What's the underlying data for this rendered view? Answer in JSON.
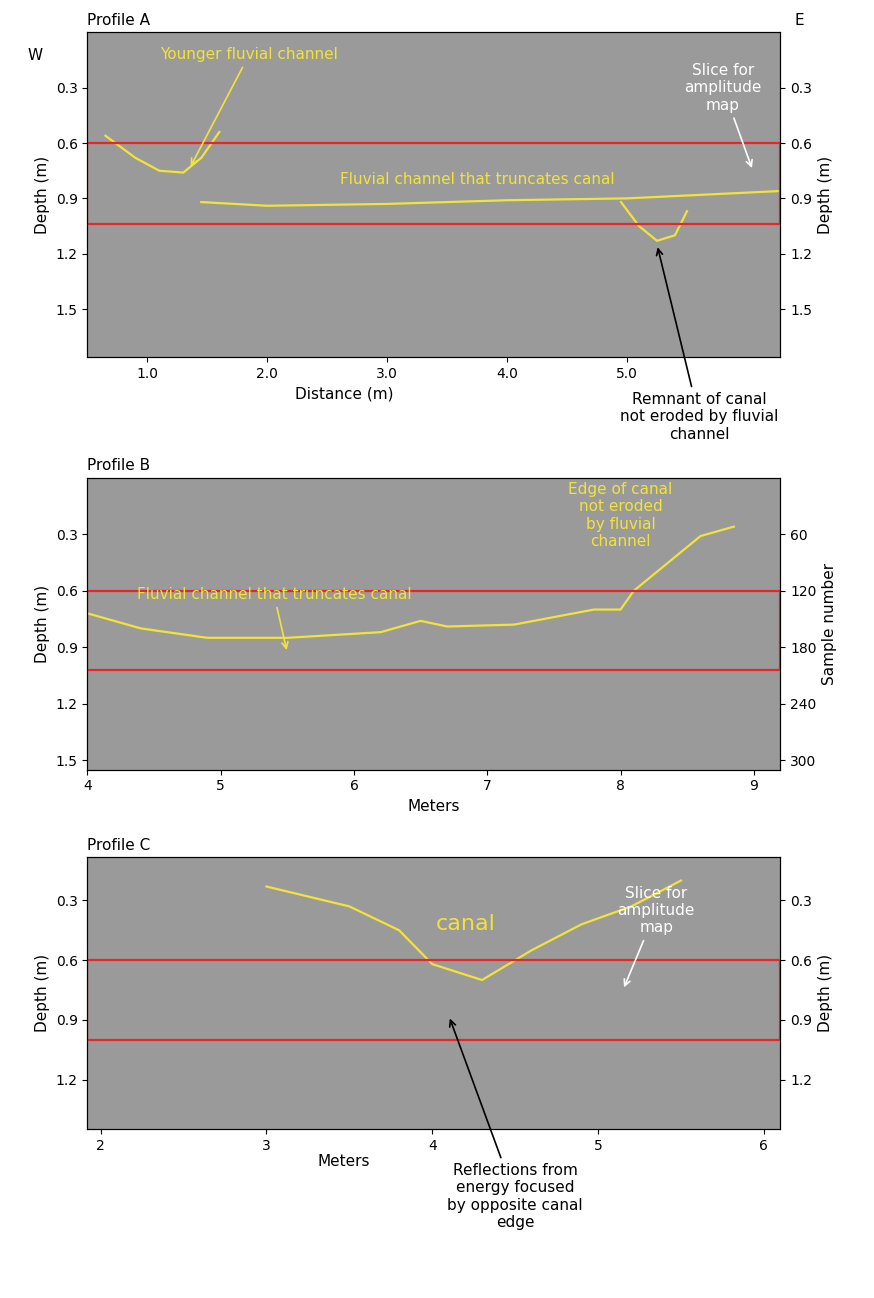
{
  "chart_data": [
    {
      "type": "line",
      "title": "Profile A",
      "xlabel": "Distance (m)",
      "ylabel": "Depth (m)",
      "y2label": "Depth (m)",
      "xlim": [
        0.5,
        6.28
      ],
      "ylim": [
        1.76,
        0
      ],
      "xticks": [
        {
          "value": 1,
          "label": "1.0"
        },
        {
          "value": 2,
          "label": "2.0"
        },
        {
          "value": 3,
          "label": "3.0"
        },
        {
          "value": 4,
          "label": "4.0"
        },
        {
          "value": 5,
          "label": "5.0"
        }
      ],
      "yticks": [
        0.3,
        0.6,
        0.9,
        1.2,
        1.5
      ],
      "y2lim": [
        1.76,
        0
      ],
      "y2ticks": [
        0.3,
        0.6,
        0.9,
        1.2,
        1.5
      ],
      "grid": false,
      "corner_labels": {
        "left": "W",
        "right": "E"
      },
      "slice_box": {
        "depths": [
          0.6,
          1.04
        ],
        "color": "#e8262a"
      },
      "series": [
        {
          "color": "#f2e33a",
          "x": [
            0.65,
            0.9,
            1.1,
            1.3,
            1.45,
            1.6
          ],
          "values": [
            0.56,
            0.68,
            0.75,
            0.76,
            0.68,
            0.54
          ]
        },
        {
          "color": "#f2e33a",
          "x": [
            1.45,
            2.0,
            3.0,
            4.0,
            5.0,
            6.28
          ],
          "values": [
            0.92,
            0.94,
            0.93,
            0.91,
            0.9,
            0.86
          ]
        },
        {
          "color": "#f2e33a",
          "x": [
            4.95,
            5.1,
            5.25,
            5.4,
            5.5
          ],
          "values": [
            0.92,
            1.05,
            1.13,
            1.1,
            0.97
          ]
        }
      ],
      "annotations": [
        {
          "text": "Younger fluvial channel",
          "color": "#f2e33a",
          "text_x": 1.85,
          "text_y": 0.12,
          "x": 1.35,
          "y": 0.74
        },
        {
          "text": "Fluvial channel that truncates canal",
          "color": "#f2e33a",
          "text_x": 3.75,
          "text_y": 0.8
        },
        {
          "text": "Slice for\namplitude\nmap",
          "color": "#ffffff",
          "text_x": 5.8,
          "text_y": 0.3,
          "x": 6.05,
          "y": 0.75
        },
        {
          "text": "Remnant of canal\nnot eroded by fluvial\nchannel",
          "color": "#000000",
          "text_x": 5.6,
          "text_y": 1.95,
          "x": 5.25,
          "y": 1.15
        }
      ]
    },
    {
      "type": "line",
      "title": "Profile B",
      "xlabel": "Meters",
      "ylabel": "Depth (m)",
      "y2label": "Sample number",
      "xlim": [
        4,
        9.2
      ],
      "ylim": [
        1.55,
        0
      ],
      "xticks": [
        4,
        5,
        6,
        7,
        8,
        9
      ],
      "yticks": [
        0.3,
        0.6,
        0.9,
        1.2,
        1.5
      ],
      "y2lim": [
        310,
        0
      ],
      "y2ticks": [
        60,
        120,
        180,
        240,
        300
      ],
      "grid": false,
      "slice_box": {
        "depths": [
          0.6,
          1.02
        ],
        "color": "#e8262a"
      },
      "series": [
        {
          "color": "#f2e33a",
          "x": [
            4.0,
            4.4,
            4.9,
            5.5,
            6.2,
            6.5,
            6.7,
            7.2,
            7.5,
            7.8,
            8.0,
            8.1,
            8.6,
            8.85
          ],
          "values": [
            0.72,
            0.8,
            0.85,
            0.85,
            0.82,
            0.76,
            0.79,
            0.78,
            0.74,
            0.7,
            0.7,
            0.6,
            0.31,
            0.26
          ]
        }
      ],
      "annotations": [
        {
          "text": "Fluvial channel that truncates canal",
          "color": "#f2e33a",
          "text_x": 5.4,
          "text_y": 0.62,
          "x": 5.5,
          "y": 0.93
        },
        {
          "text": "Edge of canal\nnot eroded\nby fluvial\nchannel",
          "color": "#f2e33a",
          "text_x": 8.0,
          "text_y": 0.2
        }
      ]
    },
    {
      "type": "line",
      "title": "Profile C",
      "xlabel": "Meters",
      "ylabel": "Depth (m)",
      "y2label": "Depth (m)",
      "xlim": [
        1.92,
        6.1
      ],
      "ylim": [
        1.45,
        0.08
      ],
      "xticks": [
        2,
        3,
        4,
        5,
        6
      ],
      "yticks": [
        0.3,
        0.6,
        0.9,
        1.2
      ],
      "y2lim": [
        1.45,
        0.08
      ],
      "y2ticks": [
        0.3,
        0.6,
        0.9,
        1.2
      ],
      "grid": false,
      "slice_box": {
        "depths": [
          0.6,
          1.0
        ],
        "color": "#e8262a"
      },
      "series": [
        {
          "color": "#f2e33a",
          "x": [
            3.0,
            3.5,
            3.8,
            4.0,
            4.3,
            4.6,
            4.9,
            5.2,
            5.5
          ],
          "values": [
            0.23,
            0.33,
            0.45,
            0.62,
            0.7,
            0.55,
            0.42,
            0.33,
            0.2
          ]
        }
      ],
      "annotations": [
        {
          "text": "canal",
          "color": "#f2e33a",
          "text_x": 4.2,
          "text_y": 0.42
        },
        {
          "text": "Slice for\namplitude\nmap",
          "color": "#ffffff",
          "text_x": 5.35,
          "text_y": 0.35,
          "x": 5.15,
          "y": 0.75
        },
        {
          "text": "Reflections from\nenergy focused\nby opposite canal\nedge",
          "color": "#000000",
          "text_x": 4.5,
          "text_y": 1.62,
          "x": 4.1,
          "y": 0.88
        }
      ]
    }
  ]
}
